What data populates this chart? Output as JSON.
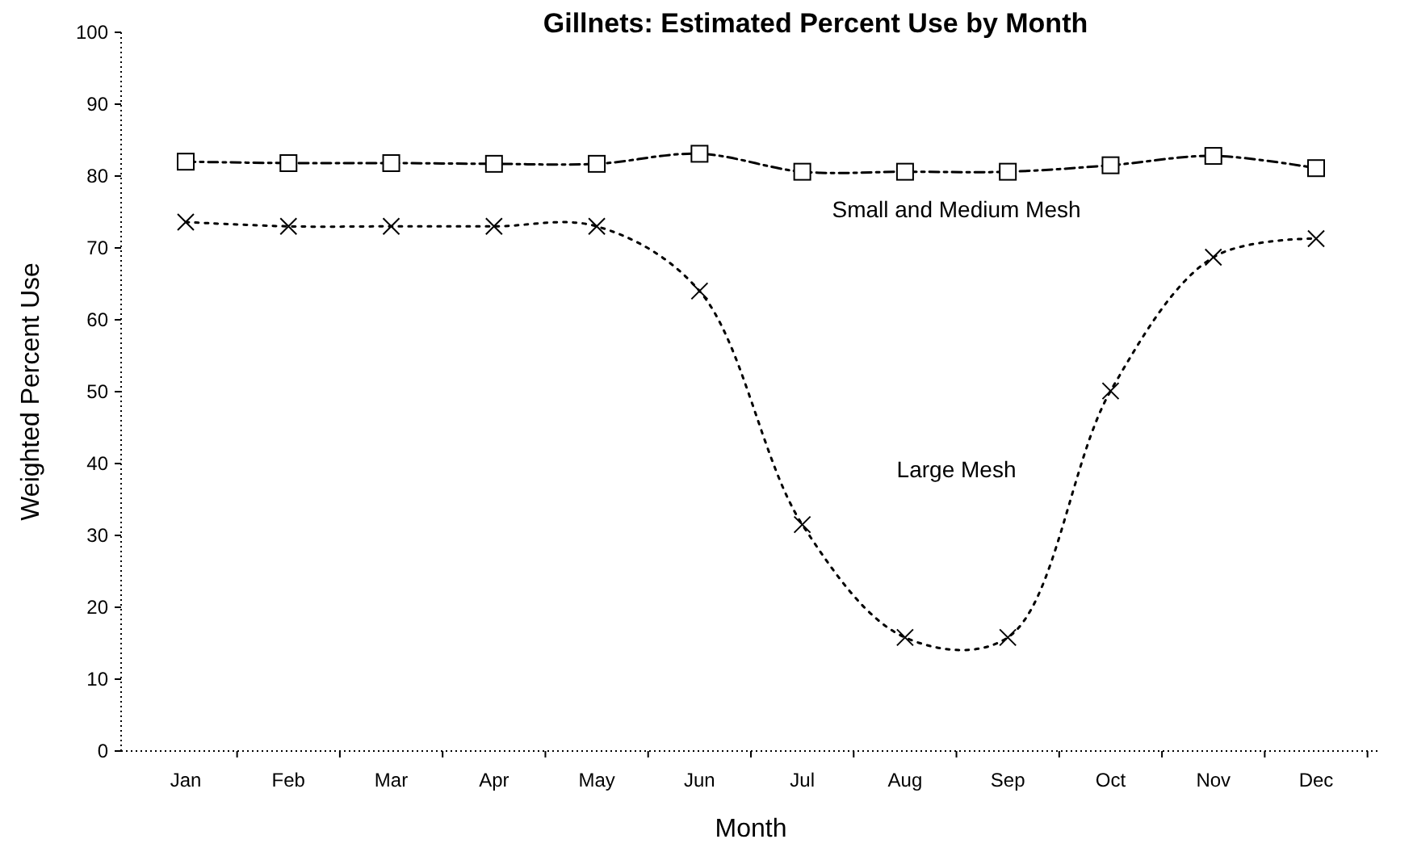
{
  "chart_data": {
    "type": "line",
    "title": "Gillnets:  Estimated Percent Use by Month",
    "xlabel": "Month",
    "ylabel": "Weighted Percent Use",
    "categories": [
      "Jan",
      "Feb",
      "Mar",
      "Apr",
      "May",
      "Jun",
      "Jul",
      "Aug",
      "Sep",
      "Oct",
      "Nov",
      "Dec"
    ],
    "series": [
      {
        "name": "Small and Medium Mesh",
        "color": "#000000",
        "marker": "square",
        "line_style": "dashed",
        "values": [
          82,
          81.8,
          81.8,
          81.7,
          81.7,
          83.1,
          80.6,
          80.6,
          80.6,
          81.5,
          82.8,
          81.1
        ]
      },
      {
        "name": "Large Mesh",
        "color": "#000000",
        "marker": "cross",
        "line_style": "dotted",
        "values": [
          73.6,
          73,
          73,
          73,
          73,
          64,
          31.5,
          15.8,
          15.8,
          50.1,
          68.7,
          71.3
        ]
      }
    ],
    "ylim": [
      0,
      100
    ],
    "yticks": [
      0,
      10,
      20,
      30,
      40,
      50,
      60,
      70,
      80,
      90,
      100
    ],
    "grid": false,
    "legend": false
  }
}
